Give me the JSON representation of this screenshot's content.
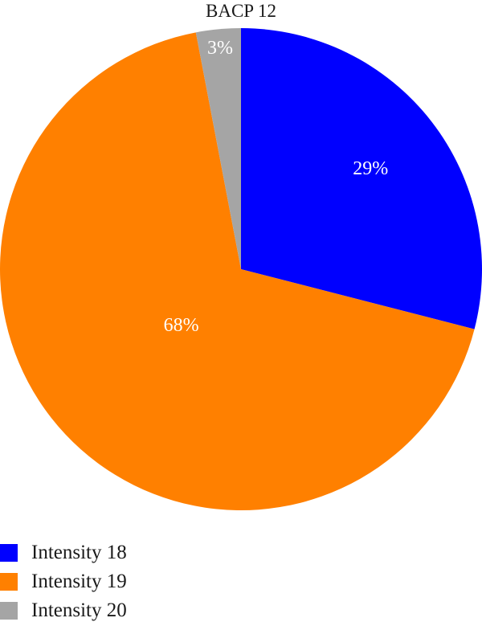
{
  "chart_data": {
    "type": "pie",
    "title": "BACP 12",
    "slices": [
      {
        "label": "Intensity 18",
        "value": 29,
        "display": "29%",
        "color": "#0000ff"
      },
      {
        "label": "Intensity 19",
        "value": 68,
        "display": "68%",
        "color": "#ff8000"
      },
      {
        "label": "Intensity 20",
        "value": 3,
        "display": "3%",
        "color": "#a5a5a5"
      }
    ],
    "legend_position": "bottom-left"
  }
}
